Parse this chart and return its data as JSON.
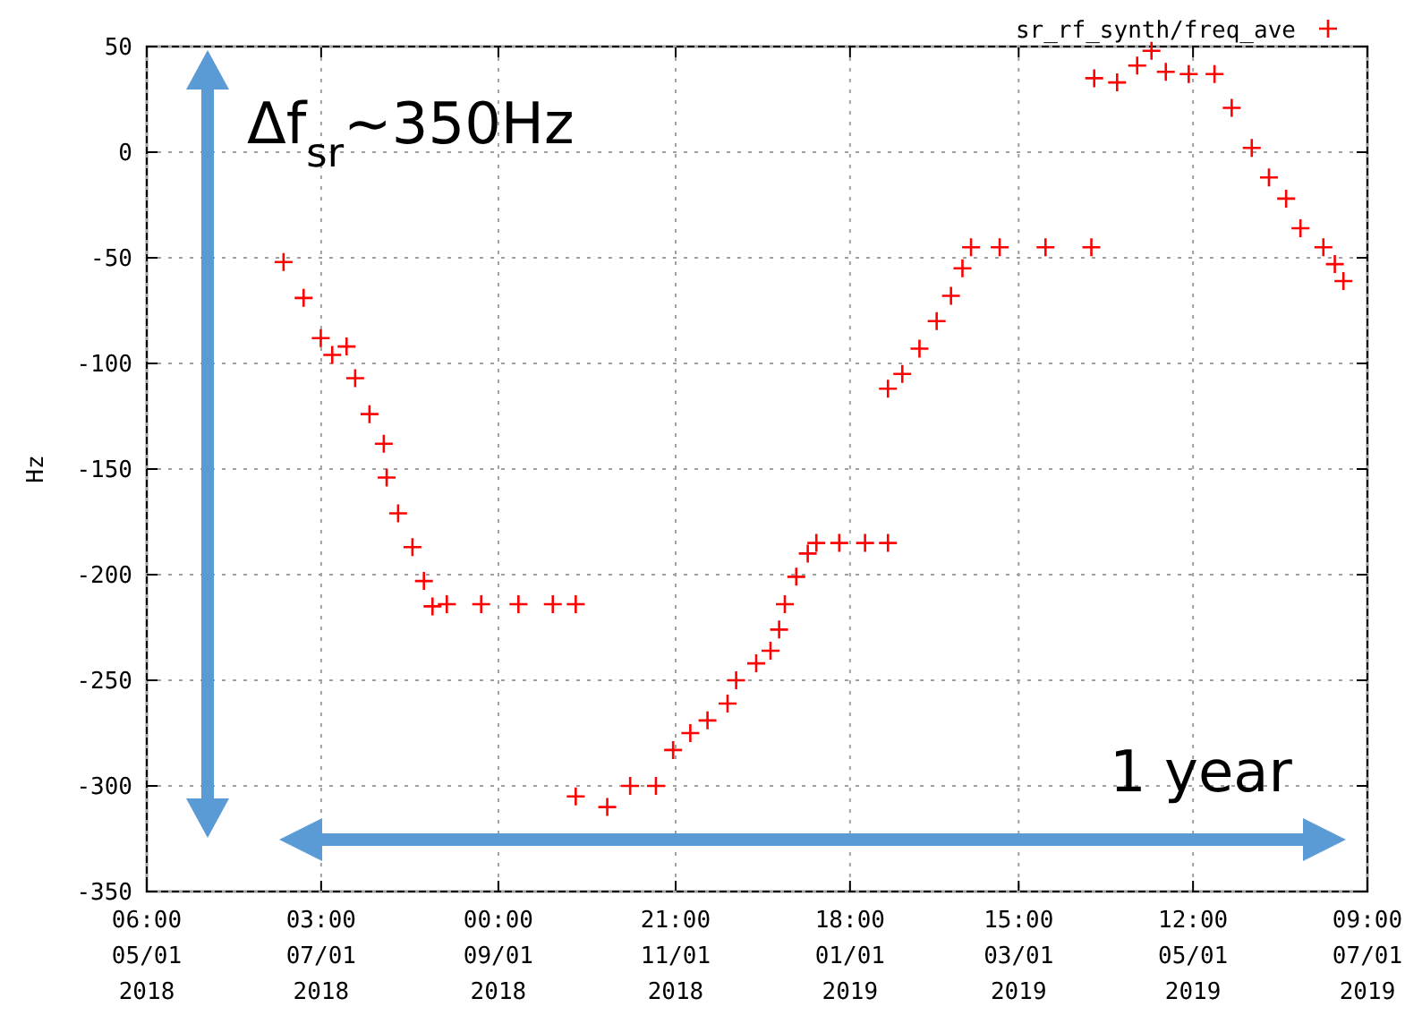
{
  "chart_data": {
    "type": "scatter",
    "ylabel": "Hz",
    "ylim": [
      -350,
      50
    ],
    "yticks": [
      -350,
      -300,
      -250,
      -200,
      -150,
      -100,
      -50,
      0,
      50
    ],
    "xlim": [
      "2018-05-01T06:00",
      "2019-07-01T09:00"
    ],
    "xticks": [
      {
        "value": "2018-05-01T06:00",
        "label": "06:00\n05/01\n2018"
      },
      {
        "value": "2018-07-01T03:00",
        "label": "03:00\n07/01\n2018"
      },
      {
        "value": "2018-09-01T00:00",
        "label": "00:00\n09/01\n2018"
      },
      {
        "value": "2018-11-01T21:00",
        "label": "21:00\n11/01\n2018"
      },
      {
        "value": "2019-01-01T18:00",
        "label": "18:00\n01/01\n2019"
      },
      {
        "value": "2019-03-01T15:00",
        "label": "15:00\n03/01\n2019"
      },
      {
        "value": "2019-05-01T12:00",
        "label": "12:00\n05/01\n2019"
      },
      {
        "value": "2019-07-01T09:00",
        "label": "09:00\n07/01\n2019"
      }
    ],
    "grid": true,
    "legend": "top right",
    "marker": "cross",
    "annotations": [
      "Δf$_{sr}$~350Hz",
      "1 year"
    ],
    "series": [
      {
        "name": "sr_rf_synth/freq_ave",
        "color": "#ff0000",
        "x": [
          "2018-06-18",
          "2018-06-25",
          "2018-07-01",
          "2018-07-05",
          "2018-07-10",
          "2018-07-13",
          "2018-07-18",
          "2018-07-23",
          "2018-07-24",
          "2018-07-28",
          "2018-08-02",
          "2018-08-06",
          "2018-08-09",
          "2018-08-14",
          "2018-08-26",
          "2018-09-08",
          "2018-09-20",
          "2018-09-28",
          "2018-09-28",
          "2018-10-09",
          "2018-10-17",
          "2018-10-26",
          "2018-11-01",
          "2018-11-07",
          "2018-11-13",
          "2018-11-20",
          "2018-11-23",
          "2018-11-30",
          "2018-12-05",
          "2018-12-08",
          "2018-12-10",
          "2018-12-14",
          "2018-12-18",
          "2018-12-21",
          "2018-12-29",
          "2019-01-07",
          "2019-01-15",
          "2019-01-15",
          "2019-01-20",
          "2019-01-26",
          "2019-02-01",
          "2019-02-06",
          "2019-02-10",
          "2019-02-13",
          "2019-02-23",
          "2019-03-11",
          "2019-03-27",
          "2019-03-28",
          "2019-04-05",
          "2019-04-12",
          "2019-04-17",
          "2019-04-22",
          "2019-04-30",
          "2019-05-09",
          "2019-05-15",
          "2019-05-22",
          "2019-05-28",
          "2019-06-03",
          "2019-06-08",
          "2019-06-16",
          "2019-06-20",
          "2019-06-23"
        ],
        "values": [
          -52,
          -69,
          -88,
          -96,
          -92,
          -107,
          -124,
          -138,
          -154,
          -171,
          -187,
          -203,
          -215,
          -214,
          -214,
          -214,
          -214,
          -214,
          -305,
          -310,
          -300,
          -300,
          -283,
          -275,
          -269,
          -261,
          -250,
          -242,
          -236,
          -226,
          -214,
          -201,
          -190,
          -185,
          -185,
          -185,
          -185,
          -112,
          -105,
          -93,
          -80,
          -68,
          -55,
          -45,
          -45,
          -45,
          -45,
          35,
          33,
          41,
          48,
          38,
          37,
          37,
          21,
          2,
          -12,
          -22,
          -36,
          -45,
          -53,
          -61
        ]
      }
    ]
  }
}
